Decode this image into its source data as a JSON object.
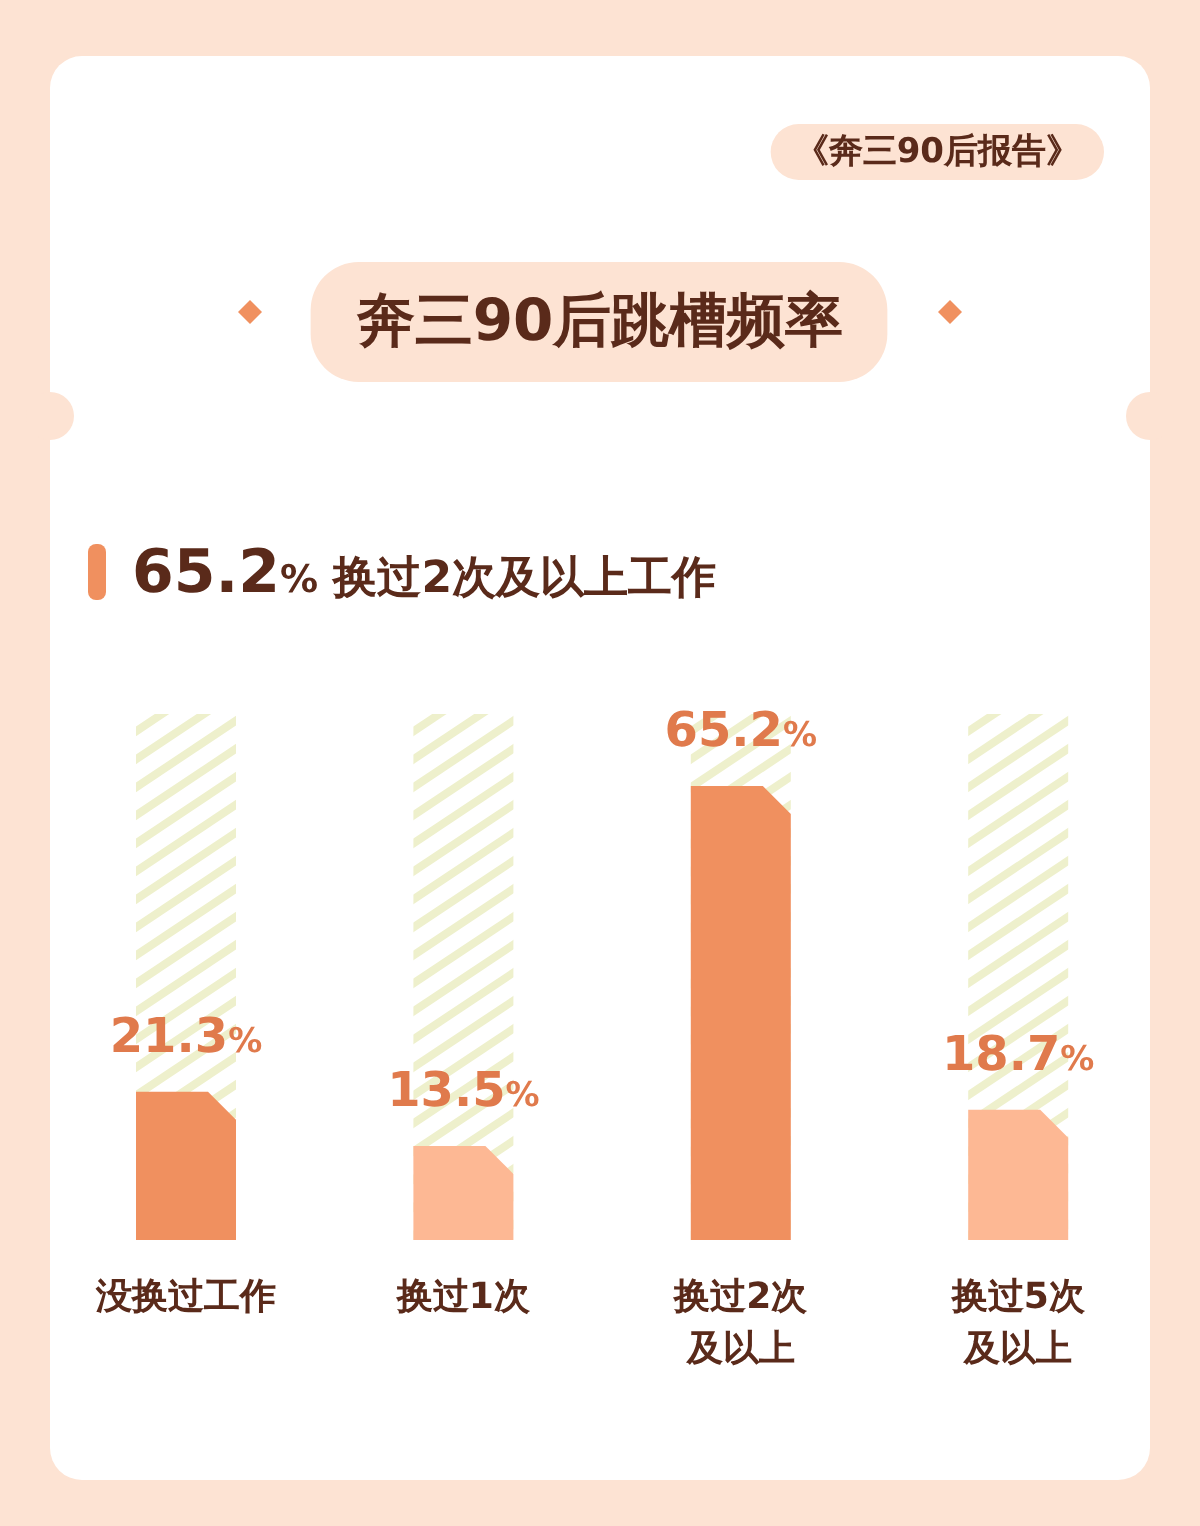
{
  "chart_data": {
    "type": "bar",
    "title": "奔三90后跳槽频率",
    "subtitle": "《奔三90后报告》",
    "annotations": [
      "65.2% 换过2次及以上工作"
    ],
    "categories": [
      "没换过工作",
      "换过1次",
      "换过2次及以上",
      "换过5次及以上"
    ],
    "values": [
      21.3,
      13.5,
      65.2,
      18.7
    ],
    "colors": [
      "#f0905f",
      "#fdb894",
      "#f0905f",
      "#fdb894"
    ],
    "value_labels": [
      "21.3%",
      "13.5%",
      "65.2%",
      "18.7%"
    ]
  }
}
